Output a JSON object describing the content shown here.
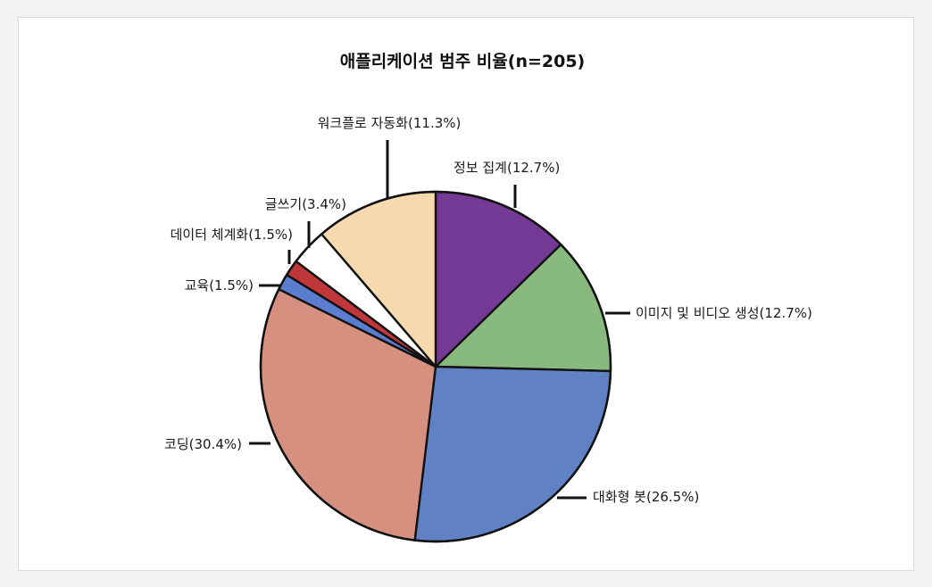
{
  "chart_data": {
    "type": "pie",
    "title": "애플리케이션 범주 비율(n=205)",
    "slices": [
      {
        "label": "정보 집계",
        "pct_text": "(12.7%)",
        "value": 12.7,
        "color": "#753a96"
      },
      {
        "label": "이미지 및 비디오 생성",
        "pct_text": "(12.7%)",
        "value": 12.7,
        "color": "#88ba7f"
      },
      {
        "label": "대화형 봇",
        "pct_text": "(26.5%)",
        "value": 26.5,
        "color": "#6081c3"
      },
      {
        "label": "코딩",
        "pct_text": "(30.4%)",
        "value": 30.4,
        "color": "#d5907f"
      },
      {
        "label": "교육",
        "pct_text": "(1.5%)",
        "value": 1.5,
        "color": "#5a7dd0"
      },
      {
        "label": "데이터 체계화",
        "pct_text": "(1.5%)",
        "value": 1.5,
        "color": "#c0373a"
      },
      {
        "label": "글쓰기",
        "pct_text": "(3.4%)",
        "value": 3.4,
        "color": "#ffffff"
      },
      {
        "label": "워크플로 자동화",
        "pct_text": "(11.3%)",
        "value": 11.3,
        "color": "#f6d9ae"
      }
    ],
    "start": "top",
    "direction": "clockwise"
  }
}
